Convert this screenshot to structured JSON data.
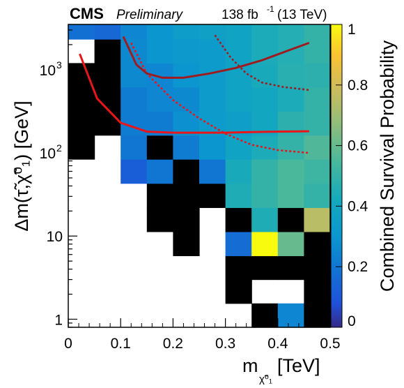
{
  "header": {
    "experiment": "CMS",
    "status": "Preliminary",
    "luminosity": "138 fb",
    "lumi_exponent": "-1",
    "energy": "(13 TeV)"
  },
  "chart_data": {
    "type": "heatmap",
    "xlabel": "m",
    "xlabel_sub": "χ̃⁰₁",
    "xlabel_unit": "[TeV]",
    "ylabel": "Δm(τ̃,χ̃⁰₁) [GeV]",
    "zlabel": "Combined Survival Probability",
    "xlim": [
      0,
      0.5
    ],
    "ylim": [
      0.8,
      3500
    ],
    "yscale": "log",
    "zlim": [
      0,
      1
    ],
    "x_ticks": [
      0,
      0.1,
      0.2,
      0.3,
      0.4,
      0.5
    ],
    "x_tick_labels": [
      "0",
      "0.1",
      "0.2",
      "0.3",
      "0.4",
      "0.5"
    ],
    "y_tick_labels": [
      {
        "value": 1,
        "label": "1"
      },
      {
        "value": 10,
        "label": "10"
      },
      {
        "value": 100,
        "label": "10",
        "exp": "2"
      },
      {
        "value": 1000,
        "label": "10",
        "exp": "3"
      }
    ],
    "z_ticks": [
      0,
      0.2,
      0.4,
      0.6,
      0.8,
      1
    ],
    "z_tick_labels": [
      "0",
      "0.2",
      "0.4",
      "0.6",
      "0.8",
      "1"
    ],
    "x_edges": [
      0,
      0.05,
      0.1,
      0.15,
      0.2,
      0.25,
      0.3,
      0.35,
      0.4,
      0.45,
      0.5
    ],
    "y_edges": [
      0.8,
      1.55,
      3.0,
      5.8,
      11.3,
      22,
      43,
      84,
      163,
      317,
      617,
      1200,
      2330,
      3500
    ],
    "z": [
      [
        null,
        null,
        null,
        null,
        null,
        null,
        null,
        0,
        0.25,
        0
      ],
      [
        null,
        null,
        null,
        null,
        null,
        null,
        0,
        null,
        null,
        0
      ],
      [
        null,
        null,
        null,
        null,
        null,
        null,
        0,
        0,
        0,
        0
      ],
      [
        null,
        null,
        null,
        null,
        0,
        null,
        0.17,
        1.0,
        0.6,
        0
      ],
      [
        null,
        null,
        null,
        0,
        0,
        null,
        0,
        0.45,
        0,
        0.75
      ],
      [
        null,
        null,
        null,
        0,
        0,
        0,
        0.45,
        0.5,
        0.55,
        0.5
      ],
      [
        null,
        null,
        0.12,
        0.2,
        0,
        0.2,
        0.43,
        0.5,
        0.55,
        0.52
      ],
      [
        0,
        null,
        0.2,
        0,
        0.22,
        0.3,
        0.38,
        0.44,
        0.5,
        0.56
      ],
      [
        0,
        0,
        0.22,
        0.22,
        0.28,
        0.33,
        0.35,
        0.4,
        0.48,
        0.5
      ],
      [
        0,
        0,
        0.22,
        0.25,
        0.26,
        0.33,
        0.38,
        0.4,
        0.44,
        0.5
      ],
      [
        0,
        0,
        0.26,
        0.25,
        0.3,
        0.33,
        0.38,
        0.43,
        0.47,
        0.48
      ],
      [
        null,
        0,
        0.26,
        0.3,
        0.32,
        0.33,
        0.38,
        0.44,
        0.46,
        0.5
      ],
      [
        0.18,
        0.15,
        0.25,
        0.3,
        0.34,
        0.36,
        0.38,
        0.44,
        0.46,
        0.5
      ]
    ],
    "curves": [
      {
        "color": "#e8161b",
        "style": "solid",
        "x": [
          0.022,
          0.055,
          0.1,
          0.15,
          0.2,
          0.25,
          0.3,
          0.35,
          0.4,
          0.46
        ],
        "y": [
          1550,
          450,
          230,
          180,
          175,
          175,
          175,
          178,
          180,
          182
        ]
      },
      {
        "color": "#e8161b",
        "style": "dotted",
        "x": [
          0.12,
          0.15,
          0.2,
          0.25,
          0.3,
          0.35,
          0.4,
          0.46
        ],
        "y": [
          2100,
          900,
          430,
          260,
          170,
          125,
          108,
          100
        ]
      },
      {
        "color": "#9e1c1f",
        "style": "solid",
        "x": [
          0.105,
          0.13,
          0.15,
          0.18,
          0.22,
          0.27,
          0.32,
          0.37,
          0.42,
          0.46
        ],
        "y": [
          2500,
          1150,
          900,
          800,
          800,
          900,
          1050,
          1300,
          1700,
          2100
        ]
      },
      {
        "color": "#9e1c1f",
        "style": "dotted",
        "x": [
          0.28,
          0.31,
          0.34,
          0.37,
          0.41,
          0.46
        ],
        "y": [
          2600,
          1400,
          900,
          700,
          620,
          570
        ]
      }
    ]
  }
}
